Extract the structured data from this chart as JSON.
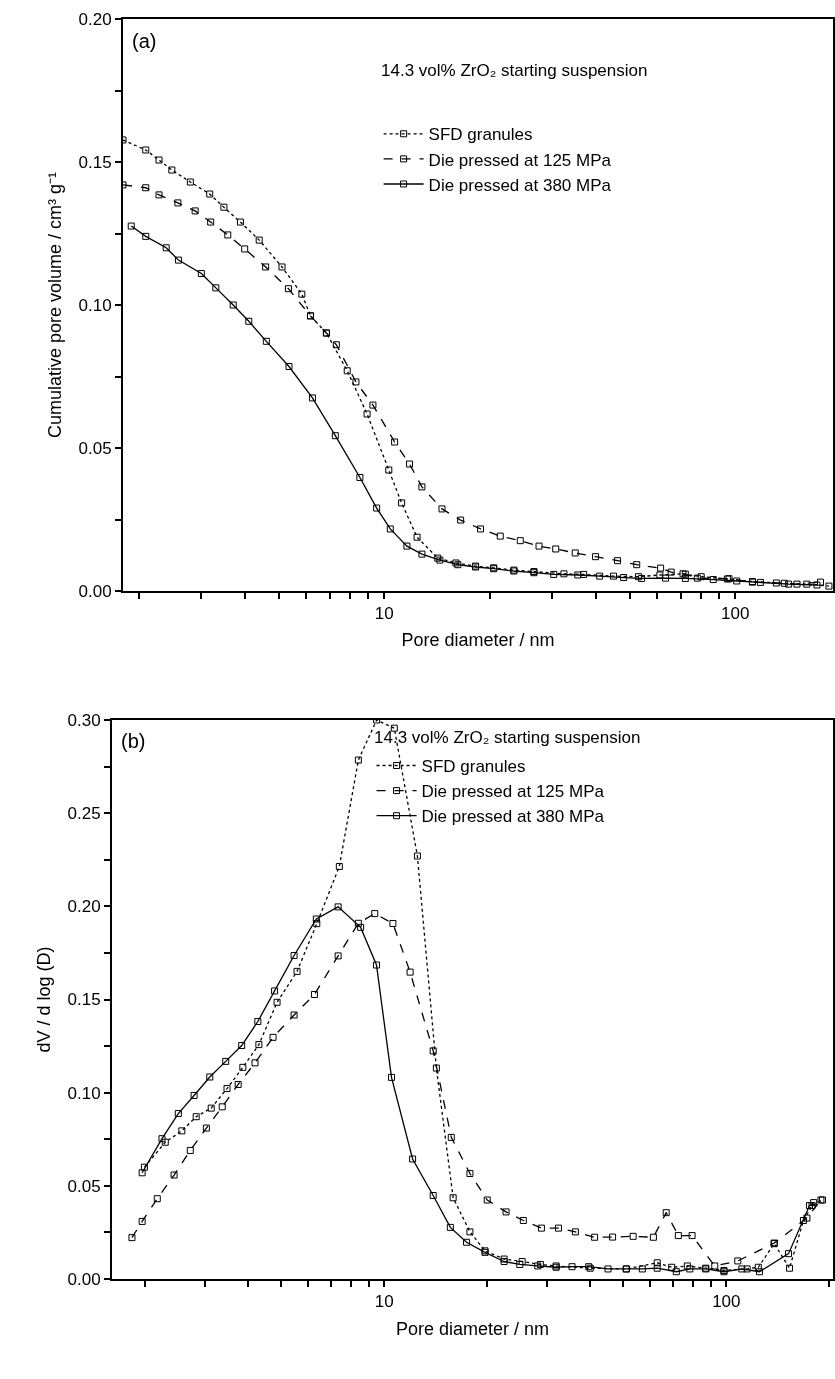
{
  "chart_data": [
    {
      "type": "line",
      "xlabel": "Pore diameter / nm",
      "ylabel": "Cumulative pore volume / cm³ g⁻¹",
      "annotations": [
        "(a)",
        "14.3 vol% ZrO₂ starting suspension"
      ],
      "log": "x",
      "xlim": [
        1.8,
        190
      ],
      "ylim": [
        0,
        0.2
      ],
      "xticks": [
        {
          "value": 2,
          "label": null
        },
        {
          "value": 3,
          "label": null
        },
        {
          "value": 4,
          "label": null
        },
        {
          "value": 5,
          "label": null
        },
        {
          "value": 6,
          "label": null
        },
        {
          "value": 7,
          "label": null
        },
        {
          "value": 8,
          "label": null
        },
        {
          "value": 9,
          "label": null
        },
        {
          "value": 10,
          "label": "10"
        },
        {
          "value": 20,
          "label": null
        },
        {
          "value": 30,
          "label": null
        },
        {
          "value": 40,
          "label": null
        },
        {
          "value": 50,
          "label": null
        },
        {
          "value": 60,
          "label": null
        },
        {
          "value": 70,
          "label": null
        },
        {
          "value": 80,
          "label": null
        },
        {
          "value": 90,
          "label": null
        },
        {
          "value": 100,
          "label": "100"
        }
      ],
      "yticks": [
        {
          "value": 0,
          "label": "0.00"
        },
        {
          "value": 0.025,
          "label": null
        },
        {
          "value": 0.05,
          "label": "0.05"
        },
        {
          "value": 0.075,
          "label": null
        },
        {
          "value": 0.1,
          "label": "0.10"
        },
        {
          "value": 0.125,
          "label": null
        },
        {
          "value": 0.15,
          "label": "0.15"
        },
        {
          "value": 0.175,
          "label": null
        },
        {
          "value": 0.2,
          "label": "0.20"
        }
      ],
      "grid": false,
      "legend": "top right",
      "marker": "square",
      "series": [
        {
          "name": "SFD granules",
          "color": "#000000",
          "line_style": "dotted",
          "x": [
            1.8,
            2.09,
            2.28,
            2.48,
            2.8,
            3.18,
            3.49,
            3.89,
            4.4,
            5.11,
            5.82,
            6.16,
            6.84,
            7.84,
            8.93,
            10.3,
            11.2,
            12.4,
            14.2,
            16.0,
            18.2,
            20.5,
            23.4,
            26.7,
            32.5,
            37,
            45,
            53,
            61,
            71,
            80,
            95,
            112,
            138,
            160,
            185
          ],
          "values": [
            0.1577,
            0.1542,
            0.1507,
            0.1472,
            0.143,
            0.1388,
            0.1342,
            0.129,
            0.1227,
            0.1133,
            0.1038,
            0.0962,
            0.0902,
            0.077,
            0.0619,
            0.0423,
            0.0308,
            0.0188,
            0.0115,
            0.0098,
            0.0087,
            0.0081,
            0.0073,
            0.0068,
            0.006,
            0.0058,
            0.0052,
            0.005,
            0.0056,
            0.006,
            0.005,
            0.0042,
            0.0033,
            0.0027,
            0.0024,
            0.0017
          ]
        },
        {
          "name": "Die pressed at 125 MPa",
          "color": "#000000",
          "line_style": "dashed",
          "x": [
            1.8,
            2.09,
            2.28,
            2.58,
            2.89,
            3.2,
            3.58,
            4.0,
            4.59,
            5.33,
            6.16,
            6.84,
            7.3,
            8.3,
            9.28,
            10.7,
            11.8,
            12.8,
            14.6,
            16.5,
            18.8,
            21.4,
            24.4,
            27.6,
            30.8,
            35,
            40,
            46.2,
            52.4,
            61.3,
            65.7,
            72.1,
            78,
            96,
            112,
            131,
            150,
            175
          ],
          "values": [
            0.142,
            0.141,
            0.1385,
            0.1357,
            0.1329,
            0.129,
            0.1245,
            0.1196,
            0.1133,
            0.1057,
            0.0962,
            0.0902,
            0.0861,
            0.0731,
            0.065,
            0.0521,
            0.0444,
            0.0364,
            0.0287,
            0.0248,
            0.0217,
            0.0192,
            0.0176,
            0.0157,
            0.0147,
            0.0133,
            0.012,
            0.0106,
            0.0092,
            0.008,
            0.0066,
            0.0059,
            0.0045,
            0.0043,
            0.0031,
            0.0028,
            0.0024,
            0.0031
          ]
        },
        {
          "name": "Die pressed at 380 MPa",
          "color": "#000000",
          "line_style": "solid",
          "x": [
            1.9,
            2.09,
            2.39,
            2.59,
            3.01,
            3.31,
            3.71,
            4.11,
            4.61,
            5.35,
            6.24,
            7.25,
            8.52,
            9.51,
            10.4,
            11.6,
            12.8,
            14.4,
            16.2,
            18.2,
            20.5,
            23.4,
            26.7,
            30.4,
            35.6,
            41.1,
            48.1,
            54.1,
            63.3,
            72.1,
            86.6,
            101,
            118,
            142,
            171
          ],
          "values": [
            0.1276,
            0.124,
            0.12,
            0.1157,
            0.111,
            0.106,
            0.1,
            0.0943,
            0.0873,
            0.0785,
            0.0675,
            0.0543,
            0.0397,
            0.029,
            0.0217,
            0.0157,
            0.0129,
            0.0108,
            0.0092,
            0.0084,
            0.0078,
            0.007,
            0.0064,
            0.0058,
            0.0056,
            0.0052,
            0.0047,
            0.0044,
            0.0045,
            0.0044,
            0.004,
            0.0035,
            0.003,
            0.0024,
            0.0021
          ]
        }
      ]
    },
    {
      "type": "line",
      "xlabel": "Pore diameter / nm",
      "ylabel": "dV / d log (D)",
      "annotations": [
        "(b)",
        "14.3 vol% ZrO₂ starting suspension"
      ],
      "log": "x",
      "xlim": [
        1.6,
        205
      ],
      "ylim": [
        0,
        0.3
      ],
      "xticks": [
        {
          "value": 2,
          "label": null
        },
        {
          "value": 3,
          "label": null
        },
        {
          "value": 4,
          "label": null
        },
        {
          "value": 5,
          "label": null
        },
        {
          "value": 6,
          "label": null
        },
        {
          "value": 7,
          "label": null
        },
        {
          "value": 8,
          "label": null
        },
        {
          "value": 9,
          "label": null
        },
        {
          "value": 10,
          "label": "10"
        },
        {
          "value": 20,
          "label": null
        },
        {
          "value": 30,
          "label": null
        },
        {
          "value": 40,
          "label": null
        },
        {
          "value": 50,
          "label": null
        },
        {
          "value": 60,
          "label": null
        },
        {
          "value": 70,
          "label": null
        },
        {
          "value": 80,
          "label": null
        },
        {
          "value": 90,
          "label": null
        },
        {
          "value": 100,
          "label": "100"
        },
        {
          "value": 200,
          "label": null
        }
      ],
      "yticks": [
        {
          "value": 0,
          "label": "0.00"
        },
        {
          "value": 0.025,
          "label": null
        },
        {
          "value": 0.05,
          "label": "0.05"
        },
        {
          "value": 0.075,
          "label": null
        },
        {
          "value": 0.1,
          "label": "0.10"
        },
        {
          "value": 0.125,
          "label": null
        },
        {
          "value": 0.15,
          "label": "0.15"
        },
        {
          "value": 0.175,
          "label": null
        },
        {
          "value": 0.2,
          "label": "0.20"
        },
        {
          "value": 0.225,
          "label": null
        },
        {
          "value": 0.25,
          "label": "0.25"
        },
        {
          "value": 0.275,
          "label": null
        },
        {
          "value": 0.3,
          "label": "0.30"
        }
      ],
      "grid": false,
      "legend": "top right",
      "marker": "square",
      "series": [
        {
          "name": "SFD granules",
          "color": "#000000",
          "line_style": "dotted",
          "x": [
            1.99,
            2.29,
            2.56,
            2.82,
            3.12,
            3.47,
            3.86,
            4.3,
            4.86,
            5.56,
            6.35,
            7.39,
            8.4,
            9.5,
            10.7,
            12.5,
            14.2,
            15.9,
            17.8,
            19.7,
            22.4,
            25.3,
            28.6,
            31.8,
            40,
            51,
            62.8,
            69.2,
            76.9,
            87,
            98.4,
            115,
            124,
            138,
            153,
            168,
            178,
            191
          ],
          "values": [
            0.06,
            0.0734,
            0.0795,
            0.0871,
            0.0917,
            0.1022,
            0.1136,
            0.1258,
            0.1485,
            0.1651,
            0.1907,
            0.2214,
            0.2785,
            0.3,
            0.2956,
            0.227,
            0.1132,
            0.0436,
            0.0253,
            0.0151,
            0.0107,
            0.0094,
            0.0078,
            0.007,
            0.0058,
            0.0054,
            0.0087,
            0.0063,
            0.007,
            0.0058,
            0.0046,
            0.0054,
            0.0063,
            0.019,
            0.0058,
            0.0314,
            0.0394,
            0.0424
          ]
        },
        {
          "name": "Die pressed at 125 MPa",
          "color": "#000000",
          "line_style": "dashed",
          "x": [
            1.83,
            1.96,
            2.17,
            2.43,
            2.71,
            3.02,
            3.36,
            3.74,
            4.19,
            4.73,
            5.45,
            6.25,
            7.33,
            8.4,
            9.38,
            10.6,
            11.9,
            13.9,
            15.7,
            17.8,
            20.0,
            22.7,
            25.5,
            28.8,
            32.3,
            36.2,
            41.2,
            46.5,
            53.4,
            61.2,
            66.7,
            72.4,
            79.4,
            92.5,
            108,
            138,
            172,
            189
          ],
          "values": [
            0.0222,
            0.0309,
            0.0431,
            0.0558,
            0.069,
            0.081,
            0.0924,
            0.1044,
            0.116,
            0.1297,
            0.1417,
            0.1527,
            0.1734,
            0.1909,
            0.1961,
            0.1908,
            0.1647,
            0.1224,
            0.076,
            0.0566,
            0.0424,
            0.036,
            0.0314,
            0.0273,
            0.0273,
            0.0253,
            0.0224,
            0.0225,
            0.0229,
            0.0224,
            0.0356,
            0.0233,
            0.0233,
            0.007,
            0.0097,
            0.0193,
            0.0327,
            0.0424
          ]
        },
        {
          "name": "Die pressed at 380 MPa",
          "color": "#000000",
          "line_style": "solid",
          "x": [
            1.96,
            2.24,
            2.5,
            2.78,
            3.09,
            3.44,
            3.83,
            4.27,
            4.78,
            5.45,
            6.33,
            7.33,
            8.53,
            9.49,
            10.5,
            12.1,
            13.9,
            15.6,
            17.4,
            19.7,
            22.4,
            24.9,
            28.1,
            31.8,
            35.4,
            39.6,
            45.1,
            51,
            56.8,
            62.8,
            71.4,
            78.2,
            87.1,
            98.4,
            111,
            125,
            152,
            175,
            180
          ],
          "values": [
            0.057,
            0.0753,
            0.0888,
            0.0985,
            0.1084,
            0.1168,
            0.1253,
            0.1382,
            0.1546,
            0.1736,
            0.1932,
            0.1997,
            0.1887,
            0.1685,
            0.1082,
            0.0644,
            0.0448,
            0.0277,
            0.0197,
            0.0143,
            0.0094,
            0.0078,
            0.007,
            0.0063,
            0.0066,
            0.0066,
            0.0054,
            0.0054,
            0.0054,
            0.0058,
            0.0039,
            0.0054,
            0.0054,
            0.0039,
            0.0054,
            0.0039,
            0.0136,
            0.0394,
            0.041
          ]
        }
      ]
    }
  ]
}
